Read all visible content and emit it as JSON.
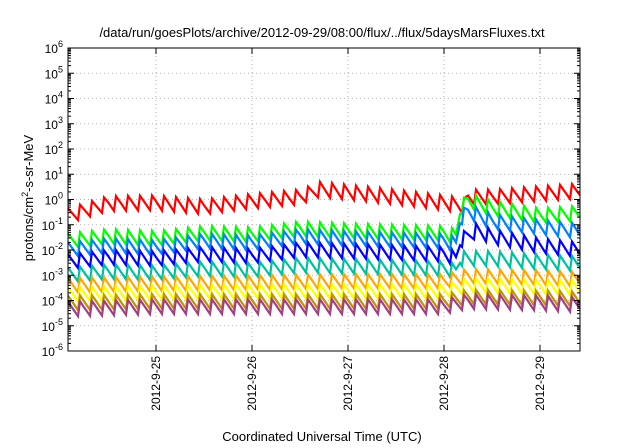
{
  "chart_data": {
    "type": "line",
    "title": "/data/run/goesPlots/archive/2012-09-29/08:00/flux/../flux/5daysMarsFluxes.txt",
    "xlabel": "Coordinated Universal Time (UTC)",
    "ylabel": "protons/cm²-s-sr-MeV",
    "x_axis": {
      "type": "time",
      "range": [
        "2012-09-24 02:00",
        "2012-09-29 10:00"
      ]
    },
    "y_axis": {
      "scale": "log",
      "range": [
        1e-06,
        1000000.0
      ]
    },
    "y_ticks": [
      {
        "value": 1e-06,
        "mantissa": "10",
        "exp": "-6"
      },
      {
        "value": 1e-05,
        "mantissa": "10",
        "exp": "-5"
      },
      {
        "value": 0.0001,
        "mantissa": "10",
        "exp": "-4"
      },
      {
        "value": 0.001,
        "mantissa": "10",
        "exp": "-3"
      },
      {
        "value": 0.01,
        "mantissa": "10",
        "exp": "-2"
      },
      {
        "value": 0.1,
        "mantissa": "10",
        "exp": "-1"
      },
      {
        "value": 1,
        "mantissa": "10",
        "exp": "0"
      },
      {
        "value": 10.0,
        "mantissa": "10",
        "exp": "1"
      },
      {
        "value": 100.0,
        "mantissa": "10",
        "exp": "2"
      },
      {
        "value": 1000.0,
        "mantissa": "10",
        "exp": "3"
      },
      {
        "value": 10000.0,
        "mantissa": "10",
        "exp": "4"
      },
      {
        "value": 100000.0,
        "mantissa": "10",
        "exp": "5"
      },
      {
        "value": 1000000.0,
        "mantissa": "10",
        "exp": "6"
      }
    ],
    "x_ticks": [
      {
        "value": "2012-09-25 00:00",
        "label": "2012-9-25"
      },
      {
        "value": "2012-09-26 00:00",
        "label": "2012-9-26"
      },
      {
        "value": "2012-09-27 00:00",
        "label": "2012-9-27"
      },
      {
        "value": "2012-09-28 00:00",
        "label": "2012-9-28"
      },
      {
        "value": "2012-09-29 00:00",
        "label": "2012-9-29"
      }
    ],
    "grid": true,
    "sawtooth_period_hours": 3,
    "series": [
      {
        "color": "#ff0000",
        "key": [
          [
            "2012-09-24 02:00",
            0.2
          ],
          [
            "2012-09-24 12:00",
            0.6
          ],
          [
            "2012-09-25 00:00",
            0.65
          ],
          [
            "2012-09-25 12:00",
            0.45
          ],
          [
            "2012-09-26 00:00",
            0.75
          ],
          [
            "2012-09-26 12:00",
            1.1
          ],
          [
            "2012-09-26 17:00",
            2.2
          ],
          [
            "2012-09-27 00:00",
            1.7
          ],
          [
            "2012-09-27 12:00",
            1.1
          ],
          [
            "2012-09-28 00:00",
            0.65
          ],
          [
            "2012-09-28 05:00",
            0.5
          ],
          [
            "2012-09-28 06:00",
            1.1
          ],
          [
            "2012-09-28 12:00",
            1.1
          ],
          [
            "2012-09-29 00:00",
            1.5
          ],
          [
            "2012-09-29 10:00",
            1.9
          ]
        ]
      },
      {
        "color": "#00ff00",
        "key": [
          [
            "2012-09-24 02:00",
            0.02
          ],
          [
            "2012-09-24 12:00",
            0.03
          ],
          [
            "2012-09-25 00:00",
            0.025
          ],
          [
            "2012-09-25 12:00",
            0.04
          ],
          [
            "2012-09-26 00:00",
            0.035
          ],
          [
            "2012-09-26 12:00",
            0.06
          ],
          [
            "2012-09-27 00:00",
            0.05
          ],
          [
            "2012-09-27 12:00",
            0.045
          ],
          [
            "2012-09-28 00:00",
            0.04
          ],
          [
            "2012-09-28 03:00",
            0.03
          ],
          [
            "2012-09-28 04:00",
            0.35
          ],
          [
            "2012-09-28 06:00",
            0.8
          ],
          [
            "2012-09-28 12:00",
            0.4
          ],
          [
            "2012-09-29 00:00",
            0.2
          ],
          [
            "2012-09-29 10:00",
            0.25
          ]
        ]
      },
      {
        "color": "#0080ff",
        "key": [
          [
            "2012-09-24 02:00",
            0.009
          ],
          [
            "2012-09-24 12:00",
            0.013
          ],
          [
            "2012-09-25 00:00",
            0.011
          ],
          [
            "2012-09-25 12:00",
            0.02
          ],
          [
            "2012-09-26 00:00",
            0.017
          ],
          [
            "2012-09-26 12:00",
            0.03
          ],
          [
            "2012-09-27 00:00",
            0.025
          ],
          [
            "2012-09-27 12:00",
            0.022
          ],
          [
            "2012-09-28 00:00",
            0.02
          ],
          [
            "2012-09-28 03:00",
            0.015
          ],
          [
            "2012-09-28 04:00",
            0.15
          ],
          [
            "2012-09-28 06:00",
            0.3
          ],
          [
            "2012-09-28 12:00",
            0.12
          ],
          [
            "2012-09-29 00:00",
            0.07
          ],
          [
            "2012-09-29 10:00",
            0.05
          ]
        ]
      },
      {
        "color": "#0000ff",
        "key": [
          [
            "2012-09-24 02:00",
            0.003
          ],
          [
            "2012-09-24 12:00",
            0.0045
          ],
          [
            "2012-09-25 00:00",
            0.004
          ],
          [
            "2012-09-25 12:00",
            0.006
          ],
          [
            "2012-09-26 00:00",
            0.005
          ],
          [
            "2012-09-26 12:00",
            0.009
          ],
          [
            "2012-09-27 00:00",
            0.008
          ],
          [
            "2012-09-27 12:00",
            0.007
          ],
          [
            "2012-09-28 00:00",
            0.006
          ],
          [
            "2012-09-28 03:00",
            0.004
          ],
          [
            "2012-09-28 04:00",
            0.02
          ],
          [
            "2012-09-28 08:00",
            0.05
          ],
          [
            "2012-09-28 12:00",
            0.03
          ],
          [
            "2012-09-29 00:00",
            0.013
          ],
          [
            "2012-09-29 10:00",
            0.009
          ]
        ]
      },
      {
        "color": "#00c0a0",
        "key": [
          [
            "2012-09-24 02:00",
            0.0009
          ],
          [
            "2012-09-24 12:00",
            0.0012
          ],
          [
            "2012-09-25 00:00",
            0.0011
          ],
          [
            "2012-09-25 12:00",
            0.0016
          ],
          [
            "2012-09-26 00:00",
            0.0014
          ],
          [
            "2012-09-26 12:00",
            0.0022
          ],
          [
            "2012-09-27 00:00",
            0.002
          ],
          [
            "2012-09-27 12:00",
            0.0018
          ],
          [
            "2012-09-28 00:00",
            0.0016
          ],
          [
            "2012-09-28 03:00",
            0.0013
          ],
          [
            "2012-09-28 04:00",
            0.004
          ],
          [
            "2012-09-28 12:00",
            0.004
          ],
          [
            "2012-09-29 00:00",
            0.003
          ],
          [
            "2012-09-29 10:00",
            0.0025
          ]
        ]
      },
      {
        "color": "#ffa500",
        "key": [
          [
            "2012-09-24 02:00",
            0.00035
          ],
          [
            "2012-09-25 00:00",
            0.0004
          ],
          [
            "2012-09-26 00:00",
            0.00045
          ],
          [
            "2012-09-27 00:00",
            0.0005
          ],
          [
            "2012-09-28 00:00",
            0.0005
          ],
          [
            "2012-09-28 06:00",
            0.0008
          ],
          [
            "2012-09-29 00:00",
            0.0007
          ],
          [
            "2012-09-29 10:00",
            0.0006
          ]
        ]
      },
      {
        "color": "#ffff00",
        "key": [
          [
            "2012-09-24 02:00",
            0.00015
          ],
          [
            "2012-09-25 00:00",
            0.00018
          ],
          [
            "2012-09-26 00:00",
            0.0002
          ],
          [
            "2012-09-27 00:00",
            0.0002
          ],
          [
            "2012-09-28 00:00",
            0.0002
          ],
          [
            "2012-09-28 06:00",
            0.00035
          ],
          [
            "2012-09-29 00:00",
            0.0003
          ],
          [
            "2012-09-29 10:00",
            0.00028
          ]
        ]
      },
      {
        "color": "#c09000",
        "key": [
          [
            "2012-09-24 02:00",
            7e-05
          ],
          [
            "2012-09-25 00:00",
            8e-05
          ],
          [
            "2012-09-26 00:00",
            8e-05
          ],
          [
            "2012-09-27 00:00",
            8e-05
          ],
          [
            "2012-09-28 00:00",
            8e-05
          ],
          [
            "2012-09-28 06:00",
            0.00012
          ],
          [
            "2012-09-29 00:00",
            0.00011
          ],
          [
            "2012-09-29 10:00",
            0.0001
          ]
        ]
      },
      {
        "color": "#a04080",
        "key": [
          [
            "2012-09-24 02:00",
            4e-05
          ],
          [
            "2012-09-25 00:00",
            5e-05
          ],
          [
            "2012-09-26 00:00",
            5e-05
          ],
          [
            "2012-09-27 00:00",
            5e-05
          ],
          [
            "2012-09-28 00:00",
            5e-05
          ],
          [
            "2012-09-28 06:00",
            8e-05
          ],
          [
            "2012-09-29 00:00",
            7e-05
          ],
          [
            "2012-09-29 10:00",
            6e-05
          ]
        ]
      }
    ]
  }
}
